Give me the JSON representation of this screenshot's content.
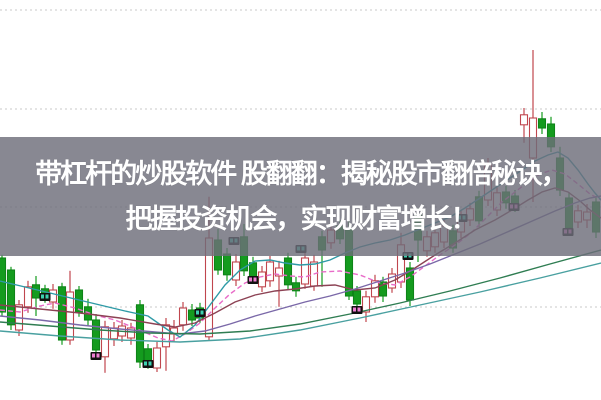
{
  "page": {
    "background": "#ffffff"
  },
  "overlay": {
    "line1": "带杠杆的炒股软件 股翻翻：揭秘股市翻倍秘诀，",
    "line2": "把握投资机会，实现财富增长！",
    "band_color": "rgba(110,110,122,0.82)",
    "text_color": "#ffffff"
  },
  "chart_data": {
    "type": "candlestick",
    "title": "",
    "xlabel": "",
    "ylabel": "",
    "axis_labels_visible": false,
    "ylim": [
      0,
      100
    ],
    "xlim": [
      0,
      601
    ],
    "note": "No axis tick labels visible; prices are relative units estimated from pixel positions (price = (400-y)/4).",
    "grid": {
      "horizontal_dashed_lines_at": [
        97.5,
        72.75,
        48.25,
        23.25
      ],
      "color": "#c9c9c9",
      "dash": "2,3"
    },
    "style": {
      "bull": "hollow-red",
      "bear": "solid-green",
      "bull_color": "#c0464e",
      "bear_color": "#149b1e",
      "bear_stroke": "#0e8418",
      "body_width": 7,
      "marker_bg": "#111111",
      "marker_cyan": "#3dd1b0",
      "marker_pink": "#ef7fd3"
    },
    "candles": [
      [
        2,
        35.5,
        36.3,
        21.0,
        22.0
      ],
      [
        11,
        32.5,
        33.3,
        17.5,
        18.8
      ],
      [
        19,
        17.5,
        25.0,
        16.0,
        23.8
      ],
      [
        28,
        23.3,
        29.8,
        21.8,
        28.3
      ],
      [
        36,
        28.8,
        31.0,
        21.0,
        25.5
      ],
      [
        45,
        27.8,
        28.8,
        24.3,
        25.8
      ],
      [
        53,
        24.5,
        29.0,
        22.8,
        27.5
      ],
      [
        62,
        28.3,
        29.3,
        13.8,
        15.0
      ],
      [
        70,
        15.0,
        32.3,
        13.8,
        27.0
      ],
      [
        79,
        27.5,
        28.5,
        20.8,
        22.0
      ],
      [
        88,
        23.3,
        25.3,
        18.5,
        20.0
      ],
      [
        96,
        20.0,
        21.5,
        11.0,
        12.5
      ],
      [
        105,
        10.8,
        19.8,
        6.8,
        18.3
      ],
      [
        114,
        15.3,
        19.5,
        13.5,
        18.0
      ],
      [
        122,
        16.0,
        20.0,
        14.5,
        18.5
      ],
      [
        131,
        15.5,
        19.3,
        13.8,
        18.0
      ],
      [
        140,
        23.8,
        25.0,
        8.0,
        9.5
      ],
      [
        148,
        12.8,
        14.0,
        7.8,
        9.8
      ],
      [
        157,
        8.0,
        14.5,
        7.0,
        13.0
      ],
      [
        166,
        13.3,
        20.5,
        7.3,
        18.8
      ],
      [
        174,
        16.5,
        20.0,
        14.5,
        18.0
      ],
      [
        183,
        18.8,
        24.5,
        17.3,
        23.0
      ],
      [
        192,
        22.5,
        24.0,
        18.5,
        20.0
      ],
      [
        200,
        23.0,
        24.3,
        19.3,
        20.5
      ],
      [
        209,
        15.8,
        50.8,
        14.8,
        40.5
      ],
      [
        218,
        40.0,
        42.8,
        31.3,
        32.5
      ],
      [
        227,
        36.5,
        38.0,
        29.8,
        31.3
      ],
      [
        236,
        30.0,
        36.5,
        28.5,
        34.5
      ],
      [
        244,
        40.8,
        44.0,
        31.0,
        32.3
      ],
      [
        253,
        34.3,
        35.8,
        29.3,
        30.8
      ],
      [
        262,
        28.3,
        33.5,
        27.0,
        32.0
      ],
      [
        270,
        29.8,
        36.0,
        28.3,
        34.5
      ],
      [
        279,
        31.0,
        34.8,
        23.3,
        33.0
      ],
      [
        288,
        35.5,
        36.8,
        27.5,
        28.8
      ],
      [
        296,
        29.3,
        30.8,
        25.8,
        27.3
      ],
      [
        305,
        29.0,
        37.5,
        27.8,
        35.5
      ],
      [
        314,
        28.5,
        36.3,
        27.3,
        34.5
      ],
      [
        322,
        40.8,
        42.3,
        28.3,
        37.5
      ],
      [
        331,
        39.3,
        44.0,
        37.8,
        42.5
      ],
      [
        340,
        43.5,
        45.0,
        39.0,
        40.3
      ],
      [
        349,
        43.0,
        44.8,
        25.0,
        26.0
      ],
      [
        357,
        27.3,
        28.5,
        22.5,
        24.0
      ],
      [
        366,
        22.0,
        27.3,
        19.5,
        25.8
      ],
      [
        375,
        25.8,
        31.3,
        24.3,
        29.8
      ],
      [
        383,
        29.5,
        30.8,
        24.5,
        26.0
      ],
      [
        392,
        28.0,
        33.0,
        26.8,
        31.5
      ],
      [
        401,
        29.5,
        41.8,
        28.0,
        38.8
      ],
      [
        410,
        33.0,
        34.5,
        23.5,
        25.0
      ],
      [
        418,
        46.5,
        48.0,
        34.5,
        40.0
      ],
      [
        427,
        37.3,
        42.3,
        35.8,
        40.8
      ],
      [
        435,
        38.3,
        43.3,
        36.8,
        41.8
      ],
      [
        444,
        39.5,
        45.3,
        38.0,
        43.5
      ],
      [
        453,
        42.3,
        43.8,
        36.8,
        38.0
      ],
      [
        461,
        42.0,
        47.5,
        40.5,
        46.0
      ],
      [
        470,
        45.0,
        49.3,
        43.5,
        47.8
      ],
      [
        479,
        50.8,
        52.3,
        43.3,
        44.8
      ],
      [
        488,
        50.0,
        60.5,
        48.5,
        58.8
      ],
      [
        497,
        47.5,
        53.3,
        46.0,
        51.8
      ],
      [
        506,
        52.0,
        53.5,
        47.8,
        49.3
      ],
      [
        515,
        51.0,
        52.5,
        47.0,
        48.5
      ],
      [
        524,
        68.8,
        73.0,
        64.3,
        71.3
      ],
      [
        533,
        60.5,
        87.5,
        49.5,
        70.5
      ],
      [
        542,
        70.3,
        72.0,
        66.5,
        68.0
      ],
      [
        551,
        69.0,
        70.8,
        62.0,
        63.3
      ],
      [
        560,
        60.5,
        63.3,
        51.0,
        52.5
      ],
      [
        569,
        50.5,
        52.0,
        41.8,
        43.0
      ],
      [
        578,
        44.5,
        48.8,
        43.0,
        47.3
      ],
      [
        587,
        45.0,
        49.0,
        43.0,
        47.0
      ],
      [
        596,
        49.5,
        51.0,
        40.5,
        42.0
      ]
    ],
    "series": [
      {
        "name": "ma-pink",
        "color": "#e86bc8",
        "dashed": true,
        "points": [
          [
            0,
            22.5
          ],
          [
            20,
            22
          ],
          [
            40,
            23.5
          ],
          [
            55,
            24.25
          ],
          [
            75,
            23
          ],
          [
            95,
            21.25
          ],
          [
            115,
            20
          ],
          [
            135,
            18
          ],
          [
            158,
            15.5
          ],
          [
            172,
            14.75
          ],
          [
            185,
            16.5
          ],
          [
            200,
            19.25
          ],
          [
            215,
            23
          ],
          [
            230,
            26.5
          ],
          [
            245,
            29.25
          ],
          [
            260,
            30.75
          ],
          [
            275,
            31.5
          ],
          [
            290,
            31
          ],
          [
            305,
            30.75
          ],
          [
            320,
            32
          ],
          [
            340,
            32.25
          ],
          [
            360,
            31.25
          ],
          [
            380,
            29.25
          ],
          [
            395,
            28.75
          ],
          [
            410,
            30.75
          ],
          [
            425,
            33.5
          ],
          [
            440,
            36.25
          ],
          [
            458,
            39.25
          ],
          [
            472,
            42
          ],
          [
            488,
            46
          ],
          [
            502,
            49.5
          ],
          [
            515,
            52
          ],
          [
            528,
            54.5
          ],
          [
            540,
            56.5
          ],
          [
            552,
            57.5
          ],
          [
            565,
            56.5
          ],
          [
            578,
            54
          ],
          [
            590,
            51.5
          ],
          [
            601,
            50
          ]
        ]
      },
      {
        "name": "ma-teal",
        "color": "#2e9aa6",
        "dashed": false,
        "points": [
          [
            0,
            29.75
          ],
          [
            25,
            28.25
          ],
          [
            50,
            26.75
          ],
          [
            75,
            25.25
          ],
          [
            100,
            23.75
          ],
          [
            125,
            22.25
          ],
          [
            148,
            21
          ],
          [
            168,
            17.5
          ],
          [
            180,
            15.75
          ],
          [
            195,
            18.75
          ],
          [
            210,
            23.75
          ],
          [
            225,
            28.75
          ],
          [
            240,
            32.5
          ],
          [
            255,
            34.75
          ],
          [
            270,
            35
          ],
          [
            285,
            34.25
          ],
          [
            300,
            33.75
          ],
          [
            315,
            34
          ],
          [
            330,
            35
          ],
          [
            345,
            36.75
          ],
          [
            360,
            38.25
          ],
          [
            375,
            39.25
          ],
          [
            390,
            40
          ],
          [
            405,
            41.25
          ],
          [
            420,
            42.75
          ],
          [
            435,
            44.25
          ],
          [
            450,
            45.75
          ],
          [
            465,
            48
          ],
          [
            480,
            50.5
          ],
          [
            495,
            53
          ],
          [
            510,
            55.5
          ],
          [
            522,
            57.5
          ],
          [
            535,
            59.75
          ],
          [
            548,
            61.25
          ],
          [
            558,
            62
          ],
          [
            568,
            60.5
          ],
          [
            578,
            57.5
          ],
          [
            588,
            54
          ],
          [
            595,
            51.75
          ],
          [
            601,
            50
          ]
        ]
      },
      {
        "name": "ma-maroon",
        "color": "#8c4254",
        "dashed": false,
        "points": [
          [
            0,
            23.75
          ],
          [
            40,
            22.75
          ],
          [
            80,
            21.75
          ],
          [
            120,
            20.5
          ],
          [
            155,
            19
          ],
          [
            175,
            18.25
          ],
          [
            195,
            19.25
          ],
          [
            215,
            21.75
          ],
          [
            235,
            24.5
          ],
          [
            255,
            26.25
          ],
          [
            275,
            27.25
          ],
          [
            295,
            27.75
          ],
          [
            315,
            28.5
          ],
          [
            335,
            28.75
          ],
          [
            355,
            27.5
          ],
          [
            375,
            28
          ],
          [
            395,
            30
          ],
          [
            415,
            33
          ],
          [
            435,
            36.25
          ],
          [
            455,
            39.25
          ],
          [
            475,
            42.5
          ],
          [
            495,
            45
          ],
          [
            512,
            47.5
          ],
          [
            528,
            50
          ],
          [
            542,
            52
          ],
          [
            555,
            53
          ],
          [
            568,
            52
          ],
          [
            580,
            49.75
          ],
          [
            590,
            47.5
          ],
          [
            601,
            45.5
          ]
        ]
      },
      {
        "name": "ma-purple",
        "color": "#7a68a8",
        "dashed": false,
        "points": [
          [
            0,
            21
          ],
          [
            40,
            20
          ],
          [
            80,
            18.75
          ],
          [
            120,
            17.75
          ],
          [
            155,
            17
          ],
          [
            180,
            16.5
          ],
          [
            205,
            17.25
          ],
          [
            230,
            19
          ],
          [
            255,
            21
          ],
          [
            280,
            22.75
          ],
          [
            305,
            24.5
          ],
          [
            330,
            26
          ],
          [
            355,
            27.75
          ],
          [
            380,
            29.75
          ],
          [
            405,
            31.75
          ],
          [
            430,
            34
          ],
          [
            455,
            36.5
          ],
          [
            480,
            39
          ],
          [
            505,
            41.75
          ],
          [
            530,
            44.5
          ],
          [
            555,
            47.25
          ],
          [
            575,
            49.25
          ],
          [
            590,
            50.5
          ],
          [
            601,
            51
          ]
        ]
      },
      {
        "name": "ma-darkgreen",
        "color": "#2f7d52",
        "dashed": false,
        "points": [
          [
            0,
            19.5
          ],
          [
            50,
            18.5
          ],
          [
            100,
            17.5
          ],
          [
            150,
            16.75
          ],
          [
            200,
            16.5
          ],
          [
            250,
            17.25
          ],
          [
            300,
            19
          ],
          [
            350,
            21.5
          ],
          [
            400,
            24.25
          ],
          [
            450,
            27.25
          ],
          [
            500,
            30.5
          ],
          [
            550,
            34
          ],
          [
            601,
            37.5
          ]
        ]
      },
      {
        "name": "ma-seagreen",
        "color": "#49a0a0",
        "dashed": false,
        "points": [
          [
            0,
            17.25
          ],
          [
            60,
            16
          ],
          [
            120,
            15
          ],
          [
            180,
            14.5
          ],
          [
            240,
            15.25
          ],
          [
            300,
            17.5
          ],
          [
            360,
            20.5
          ],
          [
            420,
            23.75
          ],
          [
            480,
            27
          ],
          [
            540,
            30.5
          ],
          [
            601,
            34.25
          ]
        ]
      }
    ],
    "signal_markers": [
      {
        "x": 45,
        "price": 25.75,
        "accent": "cyan"
      },
      {
        "x": 96,
        "price": 11.0,
        "accent": "pink"
      },
      {
        "x": 148,
        "price": 9.0,
        "accent": "cyan"
      },
      {
        "x": 200,
        "price": 21.75,
        "accent": "cyan"
      },
      {
        "x": 234,
        "price": 39.75,
        "accent": "cyan"
      },
      {
        "x": 253,
        "price": 30.0,
        "accent": "pink"
      },
      {
        "x": 301,
        "price": 37.75,
        "accent": "cyan"
      },
      {
        "x": 357,
        "price": 22.5,
        "accent": "pink"
      },
      {
        "x": 408,
        "price": 36.0,
        "accent": "cyan"
      },
      {
        "x": 462,
        "price": 45.5,
        "accent": "cyan"
      },
      {
        "x": 514,
        "price": 48.25,
        "accent": "pink"
      },
      {
        "x": 568,
        "price": 42.0,
        "accent": "pink"
      }
    ],
    "legend": {
      "visible": false
    }
  }
}
